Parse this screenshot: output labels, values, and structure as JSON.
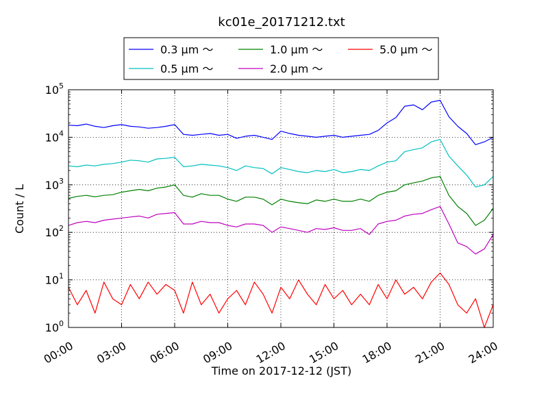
{
  "chart_data": {
    "type": "line",
    "title": "kc01e_20171212.txt",
    "xlabel": "Time on 2017-12-12 (JST)",
    "ylabel": "Count / L",
    "x_range_hours": [
      0,
      24
    ],
    "x_ticks": [
      {
        "hour": 0,
        "label": "00:00"
      },
      {
        "hour": 3,
        "label": "03:00"
      },
      {
        "hour": 6,
        "label": "06:00"
      },
      {
        "hour": 9,
        "label": "09:00"
      },
      {
        "hour": 12,
        "label": "12:00"
      },
      {
        "hour": 15,
        "label": "15:00"
      },
      {
        "hour": 18,
        "label": "18:00"
      },
      {
        "hour": 21,
        "label": "21:00"
      },
      {
        "hour": 24,
        "label": "24:00"
      }
    ],
    "y_scale": "log",
    "ylim": [
      1,
      100000
    ],
    "y_ticks": [
      {
        "value": 1,
        "base": "10",
        "exp": "0"
      },
      {
        "value": 10,
        "base": "10",
        "exp": "1"
      },
      {
        "value": 100,
        "base": "10",
        "exp": "2"
      },
      {
        "value": 1000,
        "base": "10",
        "exp": "3"
      },
      {
        "value": 10000,
        "base": "10",
        "exp": "4"
      },
      {
        "value": 100000,
        "base": "10",
        "exp": "5"
      }
    ],
    "grid": true,
    "legend_position": "top-center",
    "series": [
      {
        "name": "0.3 μm ～",
        "color": "#0000ff",
        "x": [
          0,
          0.5,
          1,
          1.5,
          2,
          2.5,
          3,
          3.5,
          4,
          4.5,
          5,
          5.5,
          6,
          6.5,
          7,
          7.5,
          8,
          8.5,
          9,
          9.5,
          10,
          10.5,
          11,
          11.5,
          12,
          12.5,
          13,
          13.5,
          14,
          14.5,
          15,
          15.5,
          16,
          16.5,
          17,
          17.5,
          18,
          18.5,
          19,
          19.5,
          20,
          20.5,
          21,
          21.5,
          22,
          22.5,
          23,
          23.5,
          24
        ],
        "y": [
          18000,
          17500,
          19000,
          17000,
          16000,
          17500,
          18500,
          17000,
          16500,
          15500,
          16000,
          17000,
          18500,
          11500,
          11000,
          11500,
          12000,
          11000,
          11500,
          9500,
          10500,
          11000,
          10000,
          9000,
          13500,
          12000,
          11000,
          10500,
          10000,
          10500,
          11000,
          10000,
          10500,
          11000,
          11500,
          14000,
          20000,
          26000,
          45000,
          48000,
          38000,
          55000,
          60000,
          27000,
          17000,
          12000,
          7000,
          8000,
          10000
        ]
      },
      {
        "name": "0.5 μm ～",
        "color": "#00bfbf",
        "x": [
          0,
          0.5,
          1,
          1.5,
          2,
          2.5,
          3,
          3.5,
          4,
          4.5,
          5,
          5.5,
          6,
          6.5,
          7,
          7.5,
          8,
          8.5,
          9,
          9.5,
          10,
          10.5,
          11,
          11.5,
          12,
          12.5,
          13,
          13.5,
          14,
          14.5,
          15,
          15.5,
          16,
          16.5,
          17,
          17.5,
          18,
          18.5,
          19,
          19.5,
          20,
          20.5,
          21,
          21.5,
          22,
          22.5,
          23,
          23.5,
          24
        ],
        "y": [
          2500,
          2400,
          2600,
          2500,
          2700,
          2800,
          3000,
          3300,
          3200,
          3000,
          3500,
          3600,
          3800,
          2400,
          2500,
          2700,
          2600,
          2500,
          2300,
          2000,
          2500,
          2300,
          2200,
          1700,
          2300,
          2100,
          1900,
          1800,
          2000,
          1900,
          2100,
          1800,
          1900,
          2100,
          2000,
          2500,
          3000,
          3200,
          5000,
          5500,
          6000,
          8000,
          9000,
          4000,
          2500,
          1600,
          900,
          1000,
          1500
        ]
      },
      {
        "name": "1.0 μm ～",
        "color": "#008000",
        "x": [
          0,
          0.5,
          1,
          1.5,
          2,
          2.5,
          3,
          3.5,
          4,
          4.5,
          5,
          5.5,
          6,
          6.5,
          7,
          7.5,
          8,
          8.5,
          9,
          9.5,
          10,
          10.5,
          11,
          11.5,
          12,
          12.5,
          13,
          13.5,
          14,
          14.5,
          15,
          15.5,
          16,
          16.5,
          17,
          17.5,
          18,
          18.5,
          19,
          19.5,
          20,
          20.5,
          21,
          21.5,
          22,
          22.5,
          23,
          23.5,
          24
        ],
        "y": [
          520,
          570,
          600,
          560,
          600,
          620,
          700,
          750,
          800,
          750,
          850,
          900,
          1000,
          600,
          550,
          650,
          600,
          600,
          500,
          450,
          550,
          550,
          500,
          380,
          500,
          450,
          420,
          400,
          480,
          450,
          500,
          450,
          450,
          500,
          450,
          600,
          700,
          750,
          1000,
          1100,
          1200,
          1400,
          1500,
          600,
          350,
          250,
          140,
          180,
          320
        ]
      },
      {
        "name": "2.0 μm ～",
        "color": "#bf00bf",
        "x": [
          0,
          0.5,
          1,
          1.5,
          2,
          2.5,
          3,
          3.5,
          4,
          4.5,
          5,
          5.5,
          6,
          6.5,
          7,
          7.5,
          8,
          8.5,
          9,
          9.5,
          10,
          10.5,
          11,
          11.5,
          12,
          12.5,
          13,
          13.5,
          14,
          14.5,
          15,
          15.5,
          16,
          16.5,
          17,
          17.5,
          18,
          18.5,
          19,
          19.5,
          20,
          20.5,
          21,
          21.5,
          22,
          22.5,
          23,
          23.5,
          24
        ],
        "y": [
          140,
          160,
          170,
          160,
          180,
          190,
          200,
          210,
          220,
          200,
          240,
          250,
          260,
          150,
          150,
          170,
          160,
          160,
          140,
          130,
          150,
          150,
          140,
          100,
          130,
          120,
          110,
          100,
          120,
          115,
          125,
          110,
          110,
          120,
          90,
          150,
          170,
          180,
          220,
          240,
          250,
          300,
          350,
          150,
          60,
          50,
          35,
          45,
          90
        ]
      },
      {
        "name": "5.0 μm ～",
        "color": "#ff0000",
        "x": [
          0,
          0.5,
          1,
          1.5,
          2,
          2.5,
          3,
          3.5,
          4,
          4.5,
          5,
          5.5,
          6,
          6.5,
          7,
          7.5,
          8,
          8.5,
          9,
          9.5,
          10,
          10.5,
          11,
          11.5,
          12,
          12.5,
          13,
          13.5,
          14,
          14.5,
          15,
          15.5,
          16,
          16.5,
          17,
          17.5,
          18,
          18.5,
          19,
          19.5,
          20,
          20.5,
          21,
          21.5,
          22,
          22.5,
          23,
          23.5,
          24
        ],
        "y": [
          7,
          3,
          6,
          2,
          9,
          4,
          3,
          8,
          4,
          9,
          5,
          8,
          6,
          2,
          9,
          3,
          5,
          2,
          4,
          6,
          3,
          9,
          5,
          2,
          7,
          4,
          10,
          5,
          3,
          8,
          4,
          6,
          3,
          5,
          3,
          8,
          4,
          10,
          5,
          7,
          4,
          9,
          14,
          8,
          3,
          2,
          4,
          1,
          3
        ]
      }
    ]
  }
}
